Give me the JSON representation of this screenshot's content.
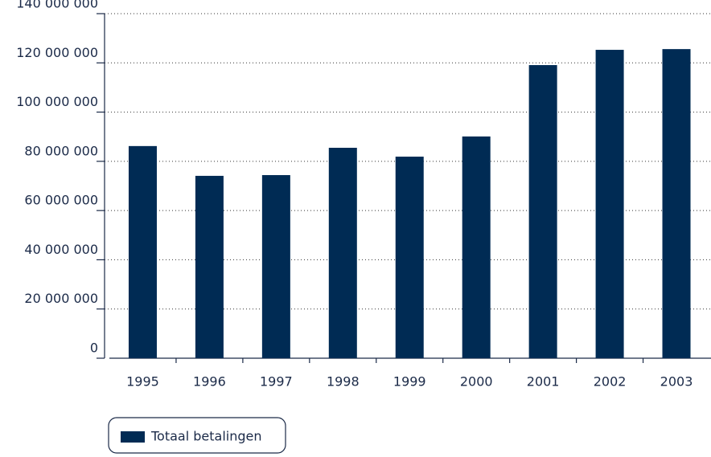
{
  "chart_data": {
    "type": "bar",
    "categories": [
      "1995",
      "1996",
      "1997",
      "1998",
      "1999",
      "2000",
      "2001",
      "2002",
      "2003"
    ],
    "series": [
      {
        "name": "Totaal betalingen",
        "color": "#002b54",
        "values": [
          86200000,
          74100000,
          74400000,
          85500000,
          81900000,
          90100000,
          119100000,
          125300000,
          125600000
        ]
      }
    ],
    "ylim": [
      0,
      140000000
    ],
    "yticks": [
      0,
      {
        "value": 20000000,
        "label": "20 000 000"
      },
      {
        "value": 40000000,
        "label": "40 000 000"
      },
      {
        "value": 60000000,
        "label": "60 000 000"
      },
      {
        "value": 80000000,
        "label": "80 000 000"
      },
      {
        "value": 100000000,
        "label": "100 000 000"
      },
      {
        "value": 120000000,
        "label": "120 000 000"
      },
      {
        "value": 140000000,
        "label": "140 000 000"
      }
    ],
    "grid": true
  }
}
